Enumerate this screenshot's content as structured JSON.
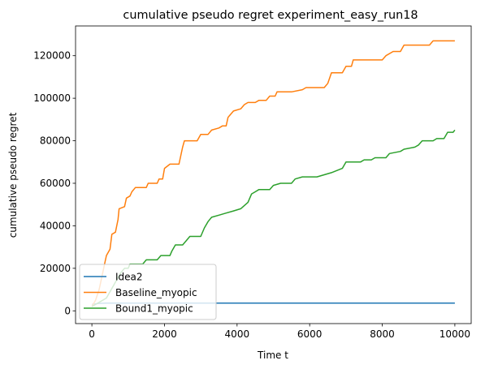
{
  "chart_data": {
    "type": "line",
    "title": "cumulative pseudo regret experiment_easy_run18",
    "xlabel": "Time t",
    "ylabel": "cumulative pseudo regret",
    "xlim": [
      -450,
      10450
    ],
    "ylim": [
      -6000,
      134000
    ],
    "xticks": [
      0,
      2000,
      4000,
      6000,
      8000,
      10000
    ],
    "yticks": [
      0,
      20000,
      40000,
      60000,
      80000,
      100000,
      120000
    ],
    "grid": false,
    "legend_position": "lower-left",
    "series": [
      {
        "name": "Idea2",
        "color": "#1f77b4",
        "points": [
          [
            0,
            3000
          ],
          [
            100,
            3300
          ],
          [
            200,
            3500
          ],
          [
            400,
            3600
          ],
          [
            10000,
            3600
          ]
        ]
      },
      {
        "name": "Baseline_myopic",
        "color": "#ff7f0e",
        "points": [
          [
            0,
            2000
          ],
          [
            100,
            5000
          ],
          [
            200,
            10000
          ],
          [
            300,
            18000
          ],
          [
            350,
            22000
          ],
          [
            400,
            26000
          ],
          [
            500,
            29000
          ],
          [
            550,
            36000
          ],
          [
            650,
            37000
          ],
          [
            720,
            43000
          ],
          [
            750,
            48000
          ],
          [
            900,
            49000
          ],
          [
            950,
            53000
          ],
          [
            1050,
            54000
          ],
          [
            1100,
            56000
          ],
          [
            1200,
            58000
          ],
          [
            1500,
            58000
          ],
          [
            1550,
            60000
          ],
          [
            1800,
            60000
          ],
          [
            1850,
            62000
          ],
          [
            1950,
            62000
          ],
          [
            2000,
            67000
          ],
          [
            2150,
            69000
          ],
          [
            2400,
            69000
          ],
          [
            2500,
            77000
          ],
          [
            2550,
            80000
          ],
          [
            2900,
            80000
          ],
          [
            3000,
            83000
          ],
          [
            3200,
            83000
          ],
          [
            3300,
            85000
          ],
          [
            3500,
            86000
          ],
          [
            3600,
            87000
          ],
          [
            3700,
            87000
          ],
          [
            3750,
            91000
          ],
          [
            3800,
            92000
          ],
          [
            3900,
            94000
          ],
          [
            4100,
            95000
          ],
          [
            4200,
            97000
          ],
          [
            4300,
            98000
          ],
          [
            4500,
            98000
          ],
          [
            4600,
            99000
          ],
          [
            4800,
            99000
          ],
          [
            4900,
            101000
          ],
          [
            5050,
            101000
          ],
          [
            5100,
            103000
          ],
          [
            5500,
            103000
          ],
          [
            5800,
            104000
          ],
          [
            5900,
            105000
          ],
          [
            6400,
            105000
          ],
          [
            6500,
            107000
          ],
          [
            6600,
            112000
          ],
          [
            6900,
            112000
          ],
          [
            7000,
            115000
          ],
          [
            7150,
            115000
          ],
          [
            7200,
            118000
          ],
          [
            8000,
            118000
          ],
          [
            8100,
            120000
          ],
          [
            8300,
            122000
          ],
          [
            8500,
            122000
          ],
          [
            8600,
            125000
          ],
          [
            9300,
            125000
          ],
          [
            9400,
            127000
          ],
          [
            10000,
            127000
          ]
        ]
      },
      {
        "name": "Bound1_myopic",
        "color": "#2ca02c",
        "points": [
          [
            0,
            2000
          ],
          [
            100,
            3000
          ],
          [
            200,
            4000
          ],
          [
            300,
            5000
          ],
          [
            400,
            6000
          ],
          [
            500,
            9000
          ],
          [
            600,
            12000
          ],
          [
            700,
            15000
          ],
          [
            800,
            18000
          ],
          [
            900,
            20000
          ],
          [
            1000,
            20000
          ],
          [
            1050,
            22000
          ],
          [
            1400,
            22000
          ],
          [
            1500,
            24000
          ],
          [
            1800,
            24000
          ],
          [
            1900,
            26000
          ],
          [
            2150,
            26000
          ],
          [
            2200,
            28000
          ],
          [
            2300,
            31000
          ],
          [
            2500,
            31000
          ],
          [
            2600,
            33000
          ],
          [
            2700,
            35000
          ],
          [
            3000,
            35000
          ],
          [
            3100,
            39000
          ],
          [
            3200,
            42000
          ],
          [
            3300,
            44000
          ],
          [
            3500,
            45000
          ],
          [
            3700,
            46000
          ],
          [
            3900,
            47000
          ],
          [
            4100,
            48000
          ],
          [
            4300,
            51000
          ],
          [
            4400,
            55000
          ],
          [
            4500,
            56000
          ],
          [
            4600,
            57000
          ],
          [
            4900,
            57000
          ],
          [
            5000,
            59000
          ],
          [
            5200,
            60000
          ],
          [
            5500,
            60000
          ],
          [
            5600,
            62000
          ],
          [
            5800,
            63000
          ],
          [
            6200,
            63000
          ],
          [
            6400,
            64000
          ],
          [
            6600,
            65000
          ],
          [
            6900,
            67000
          ],
          [
            7000,
            70000
          ],
          [
            7400,
            70000
          ],
          [
            7500,
            71000
          ],
          [
            7700,
            71000
          ],
          [
            7800,
            72000
          ],
          [
            8100,
            72000
          ],
          [
            8200,
            74000
          ],
          [
            8500,
            75000
          ],
          [
            8600,
            76000
          ],
          [
            8900,
            77000
          ],
          [
            9000,
            78000
          ],
          [
            9100,
            80000
          ],
          [
            9400,
            80000
          ],
          [
            9500,
            81000
          ],
          [
            9700,
            81000
          ],
          [
            9800,
            84000
          ],
          [
            9950,
            84000
          ],
          [
            10000,
            85000
          ]
        ]
      }
    ]
  }
}
